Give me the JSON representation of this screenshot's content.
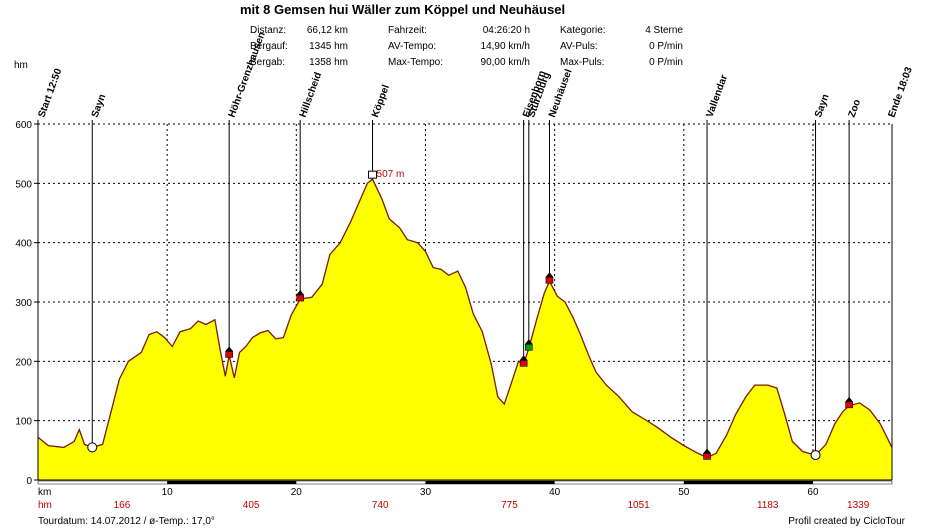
{
  "header": {
    "title": "mit 8 Gemsen hui Wäller zum Köppel und Neuhäusel",
    "stats": [
      {
        "label": "Distanz:",
        "value": "66,12 km"
      },
      {
        "label": "Bergauf:",
        "value": "1345 hm"
      },
      {
        "label": "Bergab:",
        "value": "1358 hm"
      },
      {
        "label": "Fahrzeit:",
        "value": "04:26:20 h"
      },
      {
        "label": "AV-Tempo:",
        "value": "14,90 km/h"
      },
      {
        "label": "Max-Tempo:",
        "value": "90,00 km/h"
      },
      {
        "label": "Kategorie:",
        "value": "4 Sterne"
      },
      {
        "label": "AV-Puls:",
        "value": "0 P/min"
      },
      {
        "label": "Max-Puls:",
        "value": "0 P/min"
      }
    ]
  },
  "footer": {
    "tourdate": "Tourdatum: 14.07.2012  /  ø-Temp.: 17,0°",
    "credit": "Profil created by CicloTour"
  },
  "chart_data": {
    "type": "area",
    "ylabel": "hm",
    "xlabel": "km",
    "xlim": [
      0,
      66.12
    ],
    "ylim": [
      0,
      600
    ],
    "grid": true,
    "fill_color": "#ffff00",
    "line_color": "#7a1a00",
    "x_ticks": [
      10,
      20,
      30,
      40,
      50,
      60
    ],
    "y_ticks": [
      0,
      100,
      200,
      300,
      400,
      500,
      600
    ],
    "cumulative_hm_labels": [
      {
        "x": 6.5,
        "text": "166"
      },
      {
        "x": 16.5,
        "text": "405"
      },
      {
        "x": 26.5,
        "text": "740"
      },
      {
        "x": 36.5,
        "text": "775"
      },
      {
        "x": 46.5,
        "text": "1051"
      },
      {
        "x": 56.5,
        "text": "1183"
      },
      {
        "x": 63.5,
        "text": "1339"
      }
    ],
    "max_annotation": {
      "x": 25.9,
      "y": 507,
      "text": "507 m"
    },
    "waypoints": [
      {
        "name": "Start 12:50",
        "x": 0
      },
      {
        "name": "Sayn",
        "x": 4.2
      },
      {
        "name": "Höhr-Grenzhausen",
        "x": 14.8
      },
      {
        "name": "Hillscheid",
        "x": 20.3
      },
      {
        "name": "Köppel",
        "x": 25.9
      },
      {
        "name": "Eisenborn",
        "x": 37.6
      },
      {
        "name": "Stürzburg",
        "x": 38.0
      },
      {
        "name": "Neuhäusel",
        "x": 39.6
      },
      {
        "name": "Vallendar",
        "x": 51.8
      },
      {
        "name": "Sayn",
        "x": 60.2
      },
      {
        "name": "Zoo",
        "x": 62.8
      },
      {
        "name": "Ende 18:03",
        "x": 66.12
      }
    ],
    "points": [
      [
        0,
        72
      ],
      [
        0.8,
        58
      ],
      [
        2,
        55
      ],
      [
        2.8,
        65
      ],
      [
        3.2,
        85
      ],
      [
        3.6,
        60
      ],
      [
        4.2,
        55
      ],
      [
        5,
        60
      ],
      [
        5.6,
        110
      ],
      [
        6.3,
        170
      ],
      [
        7,
        200
      ],
      [
        8,
        215
      ],
      [
        8.6,
        245
      ],
      [
        9.2,
        250
      ],
      [
        9.8,
        240
      ],
      [
        10.4,
        225
      ],
      [
        11,
        250
      ],
      [
        11.8,
        255
      ],
      [
        12.4,
        268
      ],
      [
        13,
        262
      ],
      [
        13.7,
        270
      ],
      [
        14.1,
        220
      ],
      [
        14.5,
        175
      ],
      [
        14.8,
        210
      ],
      [
        15.2,
        172
      ],
      [
        15.6,
        215
      ],
      [
        16.1,
        225
      ],
      [
        16.6,
        240
      ],
      [
        17.2,
        248
      ],
      [
        17.8,
        252
      ],
      [
        18.4,
        238
      ],
      [
        19,
        240
      ],
      [
        19.6,
        278
      ],
      [
        20.3,
        305
      ],
      [
        21.2,
        308
      ],
      [
        22,
        330
      ],
      [
        22.6,
        380
      ],
      [
        23.4,
        400
      ],
      [
        24.2,
        435
      ],
      [
        24.9,
        470
      ],
      [
        25.5,
        500
      ],
      [
        25.9,
        507
      ],
      [
        26.6,
        475
      ],
      [
        27.2,
        440
      ],
      [
        28,
        425
      ],
      [
        28.6,
        405
      ],
      [
        29.4,
        400
      ],
      [
        30,
        385
      ],
      [
        30.6,
        358
      ],
      [
        31.2,
        355
      ],
      [
        31.8,
        345
      ],
      [
        32.5,
        352
      ],
      [
        33.1,
        325
      ],
      [
        33.7,
        280
      ],
      [
        34.4,
        250
      ],
      [
        35.1,
        195
      ],
      [
        35.6,
        140
      ],
      [
        36.1,
        128
      ],
      [
        36.6,
        160
      ],
      [
        37.2,
        200
      ],
      [
        37.6,
        195
      ],
      [
        38,
        222
      ],
      [
        38.6,
        270
      ],
      [
        39.2,
        315
      ],
      [
        39.6,
        335
      ],
      [
        40.2,
        310
      ],
      [
        40.8,
        300
      ],
      [
        41.4,
        275
      ],
      [
        42,
        245
      ],
      [
        42.6,
        212
      ],
      [
        43.2,
        182
      ],
      [
        44,
        160
      ],
      [
        45,
        140
      ],
      [
        46,
        115
      ],
      [
        47,
        102
      ],
      [
        48,
        88
      ],
      [
        49,
        72
      ],
      [
        50,
        58
      ],
      [
        51,
        46
      ],
      [
        51.8,
        38
      ],
      [
        52.5,
        45
      ],
      [
        53.3,
        75
      ],
      [
        54,
        110
      ],
      [
        54.8,
        140
      ],
      [
        55.5,
        160
      ],
      [
        56.5,
        160
      ],
      [
        57.2,
        155
      ],
      [
        57.8,
        112
      ],
      [
        58.4,
        65
      ],
      [
        59.2,
        48
      ],
      [
        60.2,
        42
      ],
      [
        61,
        60
      ],
      [
        61.7,
        95
      ],
      [
        62.3,
        115
      ],
      [
        62.8,
        125
      ],
      [
        63.6,
        130
      ],
      [
        64.4,
        118
      ],
      [
        65.2,
        95
      ],
      [
        66.12,
        55
      ]
    ]
  }
}
